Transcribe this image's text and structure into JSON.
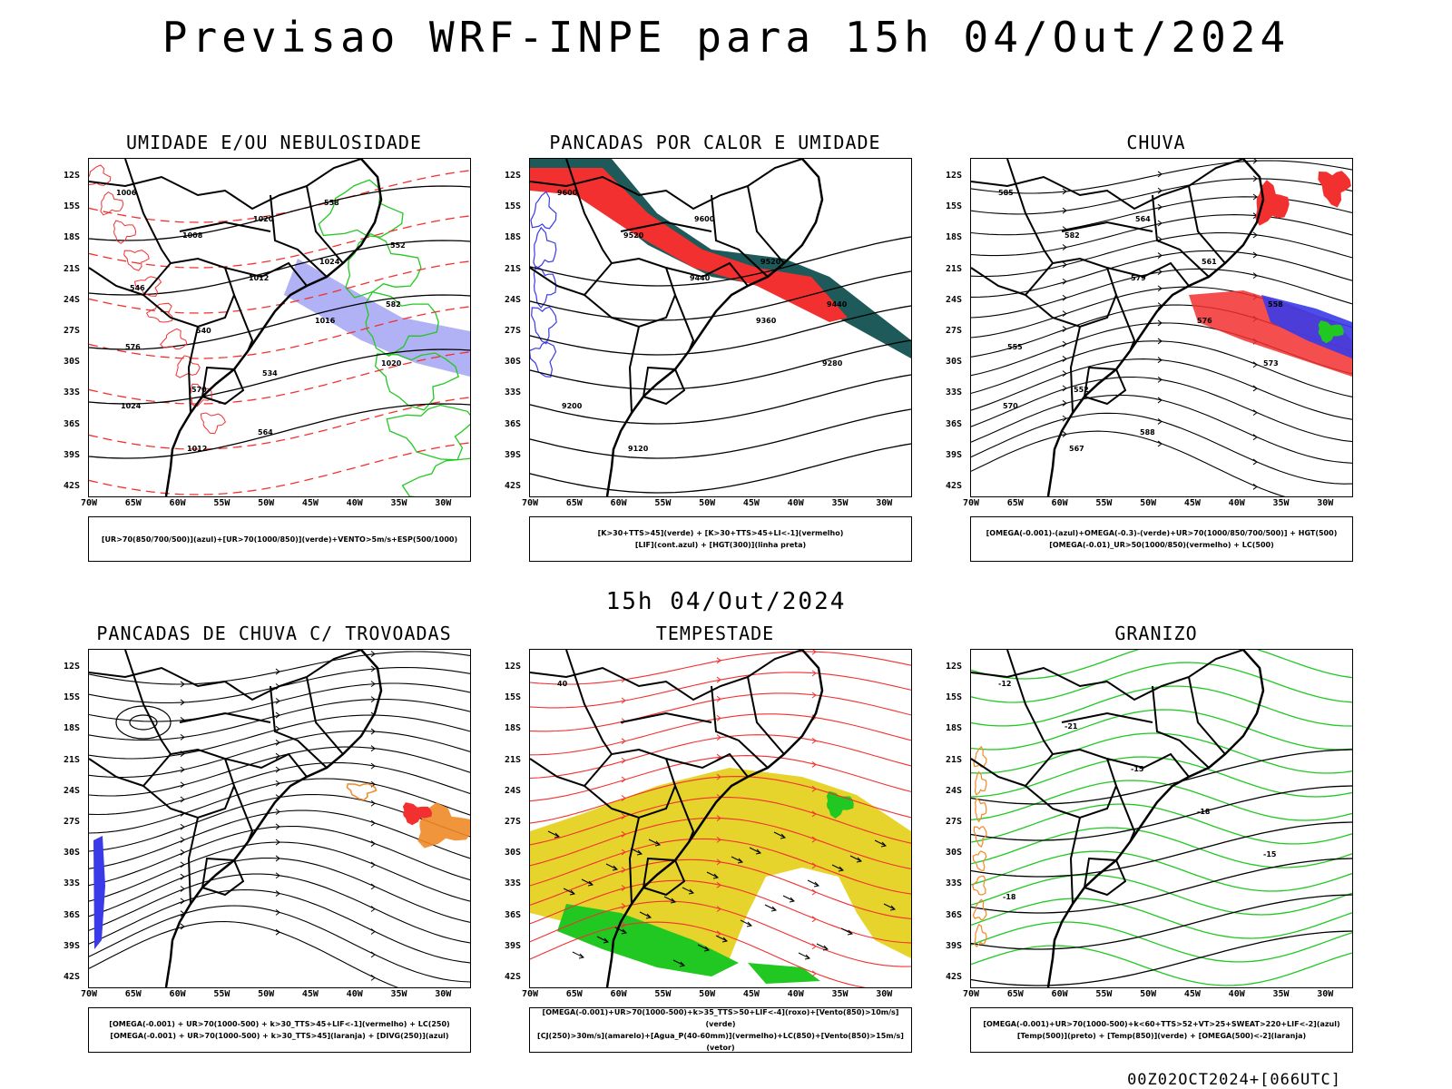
{
  "title": "Previsao WRF-INPE  para 15h 04/Out/2024",
  "mid_time": "15h 04/Out/2024",
  "footer": "00Z02OCT2024+[066UTC]",
  "lat_labels": [
    "12S",
    "15S",
    "18S",
    "21S",
    "24S",
    "27S",
    "30S",
    "33S",
    "36S",
    "39S",
    "42S"
  ],
  "lon_labels": [
    "70W",
    "65W",
    "60W",
    "55W",
    "50W",
    "45W",
    "40W",
    "35W",
    "30W"
  ],
  "colors": {
    "red": "#f2302f",
    "blue": "#3a3ae8",
    "green": "#22c822",
    "lavender": "#9d9df2",
    "orange": "#f08a28",
    "yellow": "#e6d42c",
    "teal": "#1e5a5a"
  },
  "panels": [
    {
      "title": "UMIDADE E/OU NEBULOSIDADE",
      "legend": [
        "[UR>70(850/700/500)](azul)+[UR>70(1000/850)](verde)+VENTO>5m/s+ESP(500/1000)"
      ],
      "labels": [
        "1006",
        "1008",
        "1012",
        "1016",
        "1020",
        "1024",
        "1012",
        "1020",
        "1024",
        "582",
        "576",
        "570",
        "564",
        "558",
        "552",
        "546",
        "540",
        "534"
      ]
    },
    {
      "title": "PANCADAS POR CALOR E UMIDADE",
      "legend": [
        "[K>30+TTS>45](verde) + [K>30+TTS>45+LI<-1](vermelho)",
        "[LIF](cont.azul) + [HGT(300)](linha preta)"
      ],
      "labels": [
        "9600",
        "9520",
        "9440",
        "9360",
        "9280",
        "9200",
        "9120",
        "9600",
        "9520",
        "9440"
      ]
    },
    {
      "title": "CHUVA",
      "legend": [
        "[OMEGA(-0.001)-(azul)+OMEGA(-0.3)-(verde)+UR>70(1000/850/700/500)] + HGT(500)",
        "[OMEGA(-0.01)_UR>50(1000/850)(vermelho) + LC(500)"
      ],
      "labels": [
        "585",
        "582",
        "579",
        "576",
        "573",
        "570",
        "567",
        "564",
        "561",
        "558",
        "555",
        "552",
        "588"
      ]
    },
    {
      "title": "PANCADAS DE CHUVA C/ TROVOADAS",
      "legend": [
        "[OMEGA(-0.001) + UR>70(1000-500) + k>30_TTS>45+LIF<-1](vermelho) + LC(250)",
        "[OMEGA(-0.001) + UR>70(1000-500) + k>30_TTS>45](laranja) + [DIVG(250)](azul)"
      ],
      "labels": []
    },
    {
      "title": "TEMPESTADE",
      "legend": [
        "[OMEGA(-0.001)+UR>70(1000-500)+k>35_TTS>50+LIF<-4](roxo)+[Vento(850)>10m/s](verde)",
        "[CJ(250)>30m/s](amarelo)+[Agua_P(40-60mm)](vermelho)+LC(850)+[Vento(850)>15m/s](vetor)"
      ],
      "labels": [
        "40"
      ]
    },
    {
      "title": "GRANIZO",
      "legend": [
        "[OMEGA(-0.001)+UR>70(1000-500)+k<60+TTS>52+VT>25+SWEAT>220+LIF<-2](azul)",
        "[Temp(500)](preto) + [Temp(850)](verde) + [OMEGA(500)<-2](laranja)"
      ],
      "labels": [
        "-12",
        "-21",
        "-15",
        "-18",
        "-15",
        "-18"
      ]
    }
  ]
}
